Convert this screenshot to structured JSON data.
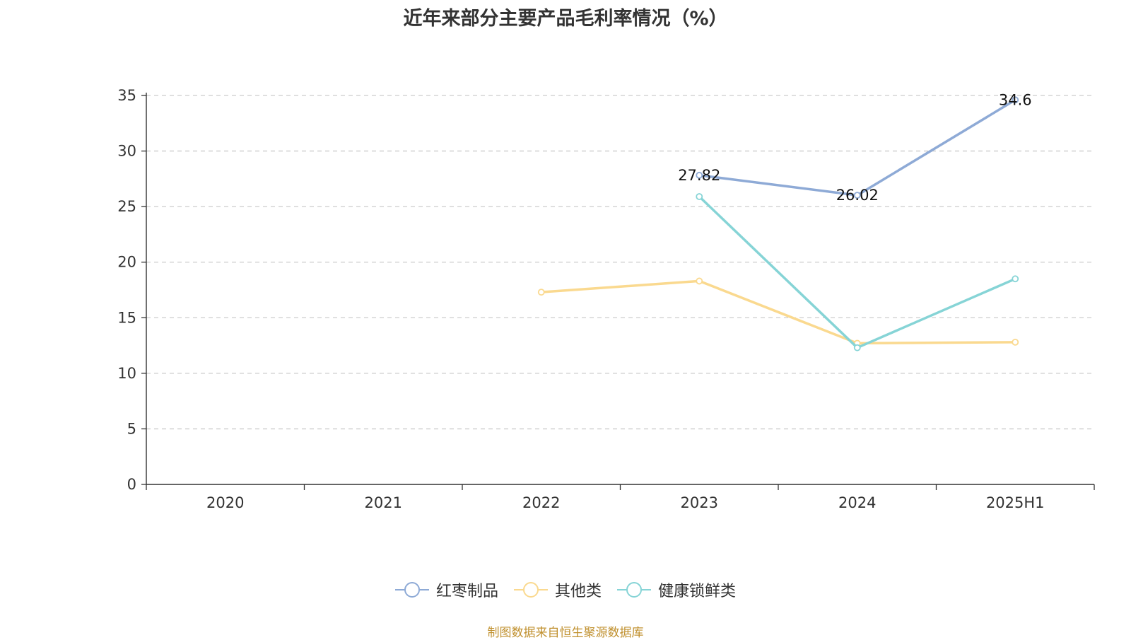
{
  "chart_data": {
    "type": "line",
    "title": "近年来部分主要产品毛利率情况（%）",
    "categories": [
      "2020",
      "2021",
      "2022",
      "2023",
      "2024",
      "2025H1"
    ],
    "ylim": [
      0,
      35
    ],
    "yticks": [
      0,
      5,
      10,
      15,
      20,
      25,
      30,
      35
    ],
    "grid": true,
    "legend_position": "bottom",
    "series": [
      {
        "name": "红枣制品",
        "color": "#8eaad6",
        "values": [
          null,
          null,
          null,
          27.82,
          26.02,
          34.6
        ],
        "labels": [
          "",
          "",
          "",
          "27.82",
          "26.02",
          "34.6"
        ]
      },
      {
        "name": "其他类",
        "color": "#fad98f",
        "values": [
          null,
          null,
          17.3,
          18.3,
          12.7,
          12.8
        ],
        "labels": [
          "",
          "",
          "",
          "",
          "",
          ""
        ]
      },
      {
        "name": "健康锁鲜类",
        "color": "#86d4d6",
        "values": [
          null,
          null,
          null,
          25.9,
          12.3,
          18.5
        ],
        "labels": [
          "",
          "",
          "",
          "",
          "",
          ""
        ]
      }
    ]
  },
  "source_text": "制图数据来自恒生聚源数据库"
}
